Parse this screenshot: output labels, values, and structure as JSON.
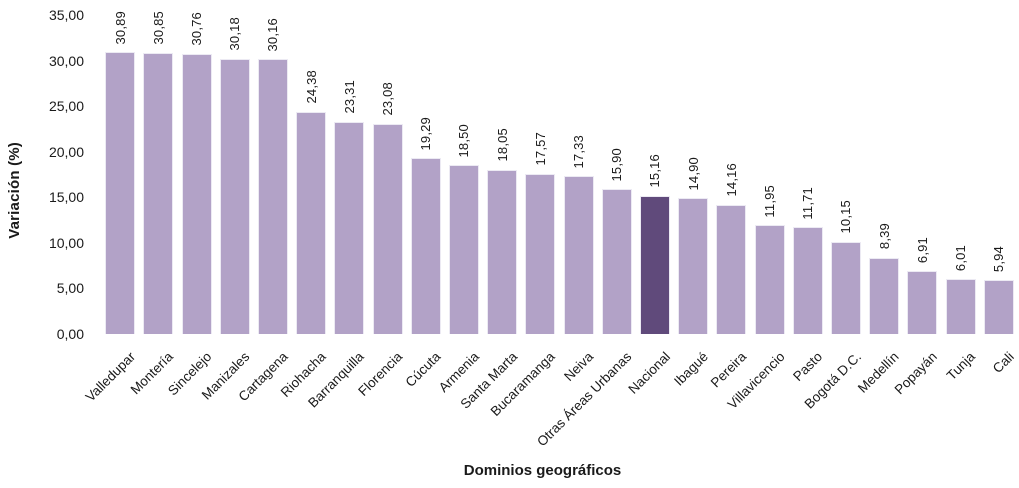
{
  "chart_data": {
    "type": "bar",
    "title": "",
    "xlabel": "Dominios geográficos",
    "ylabel": "Variación (%)",
    "ylim": [
      0,
      35
    ],
    "ytick_step": 5,
    "yticks": [
      "0,00",
      "5,00",
      "10,00",
      "15,00",
      "20,00",
      "25,00",
      "30,00",
      "35,00"
    ],
    "decimal_separator": ",",
    "grid": "off",
    "legend": "none",
    "value_labels_rotation": 90,
    "category_labels_rotation": 45,
    "categories": [
      "Valledupar",
      "Montería",
      "Sincelejo",
      "Manizales",
      "Cartagena",
      "Riohacha",
      "Barranquilla",
      "Florencia",
      "Cúcuta",
      "Armenia",
      "Santa Marta",
      "Bucaramanga",
      "Neiva",
      "Otras Áreas Urbanas",
      "Nacional",
      "Ibagué",
      "Pereira",
      "Villavicencio",
      "Pasto",
      "Bogotá D.C.",
      "Medellín",
      "Popayán",
      "Tunja",
      "Cali"
    ],
    "values": [
      30.89,
      30.85,
      30.76,
      30.18,
      30.16,
      24.38,
      23.31,
      23.08,
      19.29,
      18.5,
      18.05,
      17.57,
      17.33,
      15.9,
      15.16,
      14.9,
      14.16,
      11.95,
      11.71,
      10.15,
      8.39,
      6.91,
      6.01,
      5.94
    ],
    "value_labels": [
      "30,89",
      "30,85",
      "30,76",
      "30,18",
      "30,16",
      "24,38",
      "23,31",
      "23,08",
      "19,29",
      "18,50",
      "18,05",
      "17,57",
      "17,33",
      "15,90",
      "15,16",
      "14,90",
      "14,16",
      "11,95",
      "11,71",
      "10,15",
      "8,39",
      "6,91",
      "6,01",
      "5,94"
    ],
    "highlight_category": "Nacional",
    "colors": {
      "bar": "#b2a2c7",
      "bar_highlight": "#604a7b",
      "bar_border": "#eceaf3",
      "text": "#1a1a1a"
    }
  }
}
